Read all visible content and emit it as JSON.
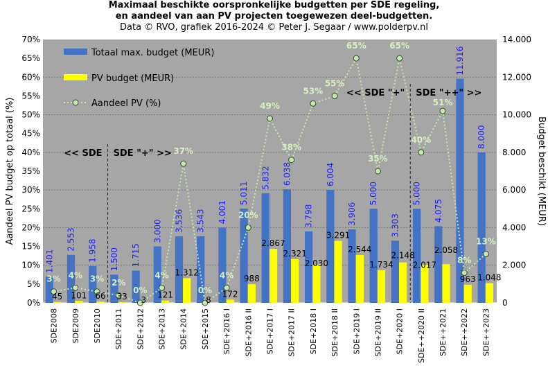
{
  "chart_data": {
    "type": "bar",
    "title_lines": [
      "Maximaal beschikte oorspronkelijke  budgetten per SDE regeling,",
      "en aandeel van aan PV projecten toegewezen deel-budgetten."
    ],
    "subtitle": "Data © RVO, grafiek 2016-2024 © Peter J. Segaar / www.polderpv.nl",
    "ylabel": "Aandeel PV budget op totaal (%)",
    "y2label": "Budget beschikt (MEUR)",
    "ylim": [
      0,
      70
    ],
    "y2lim": [
      0,
      14000
    ],
    "yticks": [
      "0%",
      "5%",
      "10%",
      "15%",
      "20%",
      "25%",
      "30%",
      "35%",
      "40%",
      "45%",
      "50%",
      "55%",
      "60%",
      "65%",
      "70%"
    ],
    "y2ticks": [
      "0",
      "2.000",
      "4.000",
      "6.000",
      "8.000",
      "10.000",
      "12.000",
      "14.000"
    ],
    "categories": [
      "SDE2008",
      "SDE2009",
      "SDE2010",
      "SDE+2011",
      "SDE+2012",
      "SDE+2013",
      "SDE+2014",
      "SDE+2015",
      "SDE+2016 I",
      "SDE+2016 II",
      "SDE+2017 I",
      "SDE+2017 II",
      "SDE+2018 I",
      "SDE+2018 II",
      "SDE+2019 I",
      "SDE+2019 II",
      "SDE+2020 I",
      "SDE++2020 II",
      "SDE++2021",
      "SDE++2022",
      "SDE++2023"
    ],
    "series": [
      {
        "name": "Totaal max. budget (MEUR)",
        "axis": "right",
        "color": "#4472C4",
        "values": [
          1401,
          2553,
          1958,
          1500,
          1715,
          3000,
          3536,
          3543,
          4001,
          5011,
          5832,
          6038,
          3798,
          6004,
          3906,
          5000,
          3303,
          5000,
          4075,
          11916,
          8000
        ],
        "labels": [
          "1.401",
          "2.553",
          "1.958",
          "1.500",
          "1.715",
          "3.000",
          "3.536",
          "3.543",
          "4.001",
          "5.011",
          "5.832",
          "6.038",
          "3.798",
          "6.004",
          "3.906",
          "5.000",
          "3.303",
          "5.000",
          "4.075",
          "11.916",
          "8.000"
        ]
      },
      {
        "name": "PV budget (MEUR)",
        "axis": "right",
        "color": "#FFFF00",
        "values": [
          45,
          101,
          66,
          33,
          3,
          121,
          1312,
          8,
          172,
          988,
          2867,
          2321,
          2030,
          3291,
          2544,
          1734,
          2148,
          2017,
          2058,
          963,
          1048
        ],
        "labels": [
          "45",
          "101",
          "66",
          "33",
          "3",
          "121",
          "1.312",
          "8",
          "172",
          "988",
          "2.867",
          "2.321",
          "2.030",
          "3.291",
          "2.544",
          "1.734",
          "2.148",
          "2.017",
          "2.058",
          "963",
          "1.048"
        ]
      },
      {
        "name": "Aandeel PV (%)",
        "axis": "left",
        "type": "line",
        "color": "#C8E6B0",
        "values": [
          3,
          4,
          3,
          2,
          0,
          4,
          37,
          0,
          4,
          20,
          49,
          38,
          53,
          55,
          65,
          35,
          65,
          40,
          51,
          8,
          13
        ],
        "labels": [
          "3%",
          "4%",
          "3%",
          "2%",
          "0%",
          "4%",
          "37%",
          "0%",
          "4%",
          "20%",
          "49%",
          "38%",
          "53%",
          "55%",
          "65%",
          "35%",
          "65%",
          "40%",
          "51%",
          "8%",
          "13%"
        ]
      }
    ],
    "annotations": [
      {
        "text": "<< SDE",
        "after": 2,
        "side": "left",
        "level": 40
      },
      {
        "text": "SDE \"+\" >>",
        "after": 2,
        "side": "right",
        "level": 40
      },
      {
        "text": "<< SDE \"+\"",
        "after": 16,
        "side": "left",
        "level": 56
      },
      {
        "text": "SDE \"++\" >>",
        "after": 16,
        "side": "right",
        "level": 56
      }
    ],
    "legend_placement": "top-left",
    "grid": true
  }
}
